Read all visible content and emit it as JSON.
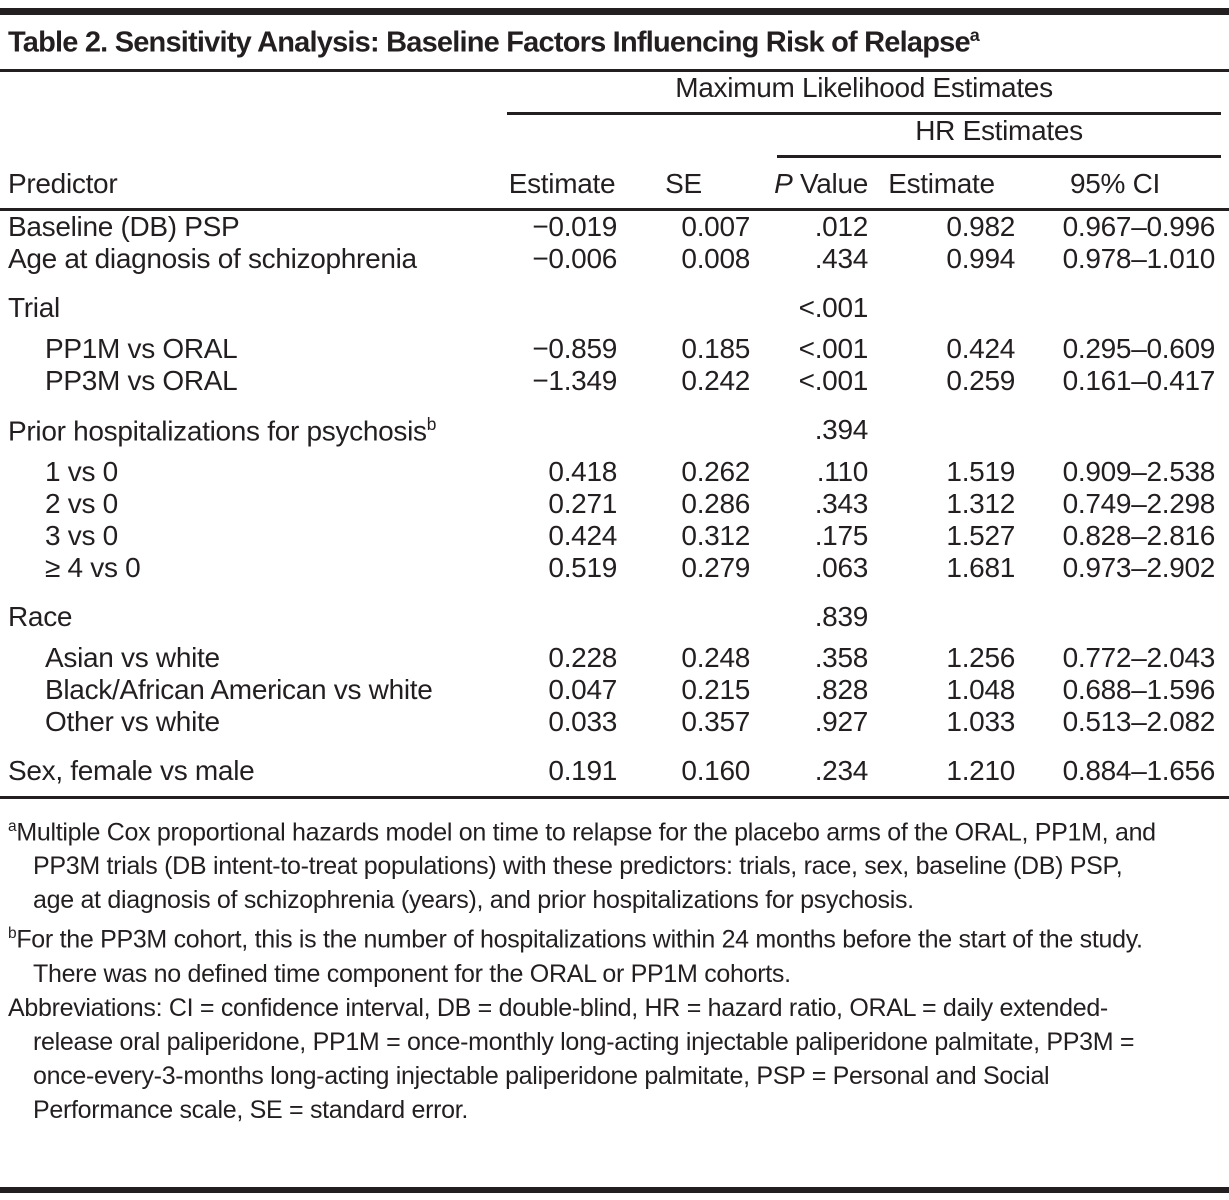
{
  "title": {
    "text": "Table 2. Sensitivity Analysis: Baseline Factors Influencing Risk of Relapse",
    "sup": "a"
  },
  "header": {
    "spanner1": "Maximum Likelihood Estimates",
    "spanner2": "HR Estimates",
    "predictor": "Predictor",
    "estimate": "Estimate",
    "se": "SE",
    "p_italic": "P",
    "p_rest": " Value",
    "hr_estimate": "Estimate",
    "ci": "95% CI"
  },
  "table": {
    "rows": [
      {
        "label": "Baseline (DB) PSP",
        "sup": "",
        "indent": false,
        "group": false,
        "estimate": "−0.019",
        "se": "0.007",
        "p": ".012",
        "hr": "0.982",
        "ci": "0.967–0.996"
      },
      {
        "label": "Age at diagnosis of schizophrenia",
        "sup": "",
        "indent": false,
        "group": false,
        "estimate": "−0.006",
        "se": "0.008",
        "p": ".434",
        "hr": "0.994",
        "ci": "0.978–1.010"
      },
      {
        "label": "Trial",
        "sup": "",
        "indent": false,
        "group": true,
        "estimate": "",
        "se": "",
        "p": "<.001",
        "hr": "",
        "ci": ""
      },
      {
        "label": "PP1M vs ORAL",
        "sup": "",
        "indent": true,
        "group": false,
        "estimate": "−0.859",
        "se": "0.185",
        "p": "<.001",
        "hr": "0.424",
        "ci": "0.295–0.609"
      },
      {
        "label": "PP3M vs ORAL",
        "sup": "",
        "indent": true,
        "group": false,
        "estimate": "−1.349",
        "se": "0.242",
        "p": "<.001",
        "hr": "0.259",
        "ci": "0.161–0.417"
      },
      {
        "label": "Prior hospitalizations for psychosis",
        "sup": "b",
        "indent": false,
        "group": true,
        "estimate": "",
        "se": "",
        "p": ".394",
        "hr": "",
        "ci": ""
      },
      {
        "label": "1 vs 0",
        "sup": "",
        "indent": true,
        "group": false,
        "estimate": "0.418",
        "se": "0.262",
        "p": ".110",
        "hr": "1.519",
        "ci": "0.909–2.538"
      },
      {
        "label": "2 vs 0",
        "sup": "",
        "indent": true,
        "group": false,
        "estimate": "0.271",
        "se": "0.286",
        "p": ".343",
        "hr": "1.312",
        "ci": "0.749–2.298"
      },
      {
        "label": "3 vs 0",
        "sup": "",
        "indent": true,
        "group": false,
        "estimate": "0.424",
        "se": "0.312",
        "p": ".175",
        "hr": "1.527",
        "ci": "0.828–2.816"
      },
      {
        "label": "≥ 4 vs 0",
        "sup": "",
        "indent": true,
        "group": false,
        "estimate": "0.519",
        "se": "0.279",
        "p": ".063",
        "hr": "1.681",
        "ci": "0.973–2.902"
      },
      {
        "label": "Race",
        "sup": "",
        "indent": false,
        "group": true,
        "estimate": "",
        "se": "",
        "p": ".839",
        "hr": "",
        "ci": ""
      },
      {
        "label": "Asian vs white",
        "sup": "",
        "indent": true,
        "group": false,
        "estimate": "0.228",
        "se": "0.248",
        "p": ".358",
        "hr": "1.256",
        "ci": "0.772–2.043"
      },
      {
        "label": "Black/African American vs white",
        "sup": "",
        "indent": true,
        "group": false,
        "estimate": "0.047",
        "se": "0.215",
        "p": ".828",
        "hr": "1.048",
        "ci": "0.688–1.596"
      },
      {
        "label": "Other vs white",
        "sup": "",
        "indent": true,
        "group": false,
        "estimate": "0.033",
        "se": "0.357",
        "p": ".927",
        "hr": "1.033",
        "ci": "0.513–2.082"
      },
      {
        "label": "Sex, female vs male",
        "sup": "",
        "indent": false,
        "group": true,
        "estimate": "0.191",
        "se": "0.160",
        "p": ".234",
        "hr": "1.210",
        "ci": "0.884–1.656"
      }
    ]
  },
  "footnotes": [
    {
      "marker": "a",
      "text": "Multiple Cox proportional hazards model on time to relapse for the placebo arms of the ORAL, PP1M, and PP3M trials (DB intent-to-treat populations) with these predictors: trials, race, sex, baseline (DB) PSP, age at diagnosis of schizophrenia (years), and prior hospitalizations for psychosis."
    },
    {
      "marker": "b",
      "text": "For the PP3M cohort, this is the number of hospitalizations within 24 months before the start of the study. There was no defined time component for the ORAL or PP1M cohorts."
    },
    {
      "marker": "",
      "text": "Abbreviations: CI = confidence interval, DB = double-blind, HR = hazard ratio, ORAL = daily extended-release oral paliperidone, PP1M = once-monthly long-acting injectable paliperidone palmitate, PP3M = once-every-3-months long-acting injectable paliperidone palmitate, PSP = Personal and Social Performance scale, SE = standard error."
    }
  ],
  "colors": {
    "text": "#231f20",
    "rule": "#231f20",
    "background": "#ffffff"
  }
}
